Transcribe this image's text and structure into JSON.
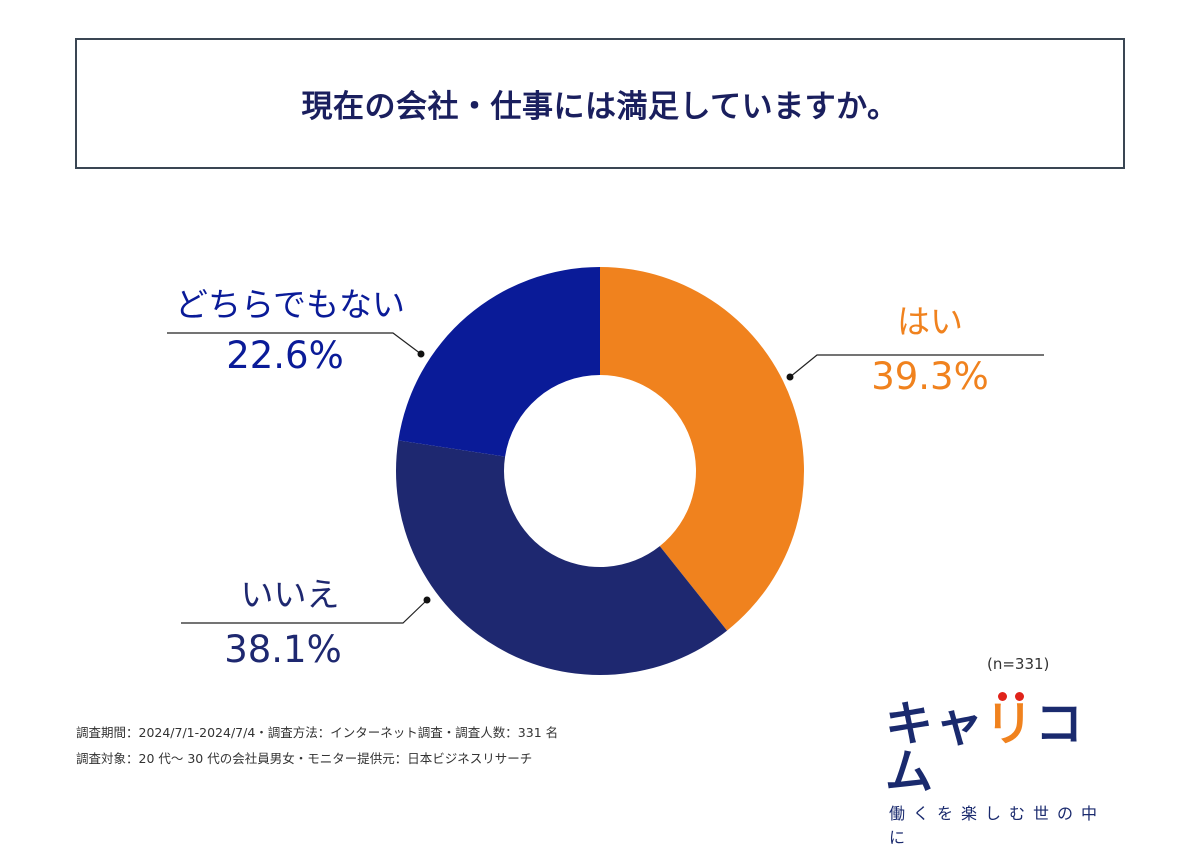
{
  "title": "現在の会社・仕事には満足していますか。",
  "chart_data": {
    "type": "pie",
    "variant": "donut",
    "title": "現在の会社・仕事には満足していますか。",
    "start": "top",
    "direction": "clockwise",
    "slices": [
      {
        "label": "はい",
        "value": 39.3,
        "display": "39.3%",
        "color": "#f0821e"
      },
      {
        "label": "いいえ",
        "value": 38.1,
        "display": "38.1%",
        "color": "#1e2870"
      },
      {
        "label": "どちらでもない",
        "value": 22.6,
        "display": "22.6%",
        "color": "#0a1b98"
      }
    ],
    "label_colors": {
      "はい": "#f0821e",
      "いいえ": "#1e2870",
      "どちらでもない": "#0a1b98"
    },
    "sample_size": "(n=331)"
  },
  "footer": {
    "line1": "調査期間：2024/7/1-2024/7/4・調査方法：インターネット調査・調査人数：331 名",
    "line2": "調査対象：20 代～ 30 代の会社員男女・モニター提供元：日本ビジネスリサーチ"
  },
  "logo": {
    "prefix": "キャ",
    "highlight": "リ",
    "suffix": "コム",
    "tagline": "働くを楽しむ世の中に",
    "primary_color": "#1a2a6e",
    "accent_color": "#f0821e",
    "dot_color": "#e0231a"
  }
}
